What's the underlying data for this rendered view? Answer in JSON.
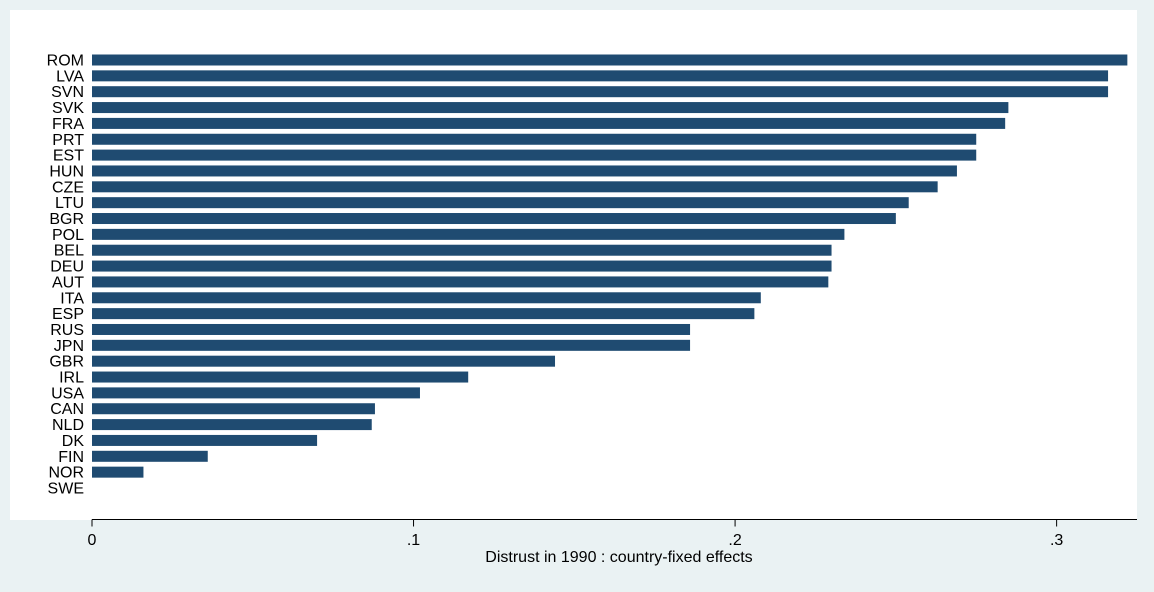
{
  "chart_data": {
    "type": "bar",
    "orientation": "horizontal",
    "categories": [
      "ROM",
      "LVA",
      "SVN",
      "SVK",
      "FRA",
      "PRT",
      "EST",
      "HUN",
      "CZE",
      "LTU",
      "BGR",
      "POL",
      "BEL",
      "DEU",
      "AUT",
      "ITA",
      "ESP",
      "RUS",
      "JPN",
      "GBR",
      "IRL",
      "USA",
      "CAN",
      "NLD",
      "DK",
      "FIN",
      "NOR",
      "SWE"
    ],
    "values": [
      0.322,
      0.316,
      0.316,
      0.285,
      0.284,
      0.275,
      0.275,
      0.269,
      0.263,
      0.254,
      0.25,
      0.234,
      0.23,
      0.23,
      0.229,
      0.208,
      0.206,
      0.186,
      0.186,
      0.144,
      0.117,
      0.102,
      0.088,
      0.087,
      0.07,
      0.036,
      0.016,
      0
    ],
    "title": "",
    "xlabel": "Distrust in 1990 : country-fixed effects",
    "ylabel": "",
    "xlim": [
      0,
      0.325
    ],
    "xticks": [
      {
        "value": 0,
        "label": "0"
      },
      {
        "value": 0.1,
        "label": ".1"
      },
      {
        "value": 0.2,
        "label": ".2"
      },
      {
        "value": 0.3,
        "label": ".3"
      }
    ],
    "grid": false,
    "legend": "none",
    "colors": {
      "bar": "#1f4b71",
      "outer_background": "#eaf2f3",
      "plot_background": "#ffffff",
      "axis": "#000000",
      "text": "#000000"
    }
  }
}
